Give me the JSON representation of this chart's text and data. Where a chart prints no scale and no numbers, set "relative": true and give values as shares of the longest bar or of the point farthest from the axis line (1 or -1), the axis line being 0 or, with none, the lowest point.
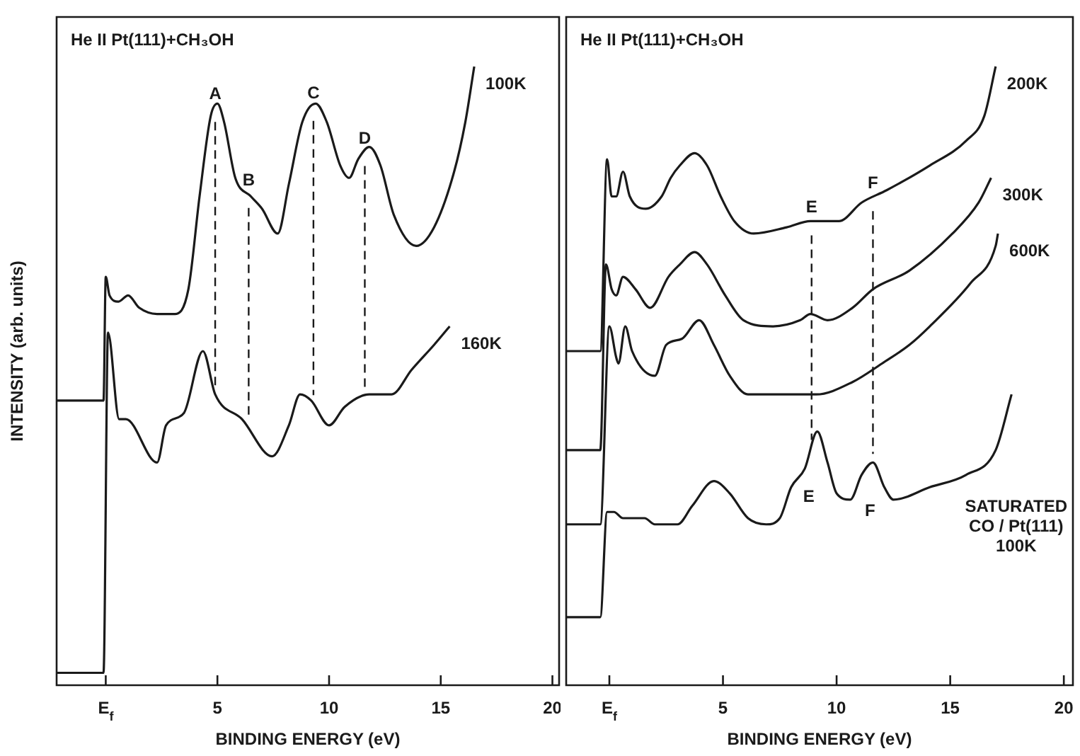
{
  "chart_data": [
    {
      "type": "line",
      "title": "He II Pt(111)+CH₃OH",
      "xlabel": "BINDING ENERGY (eV)",
      "ylabel": "INTENSITY (arb. units)",
      "relative": true,
      "xlim": [
        -2.2,
        20.3
      ],
      "xticks": [
        {
          "value": 0,
          "label": "E$_{f}$"
        },
        5,
        10,
        15,
        20
      ],
      "series": [
        {
          "name": "100K",
          "color": "#1a1a1a",
          "x": [
            -2.2,
            -0.1,
            0,
            0.17,
            0.57,
            1.0,
            1.5,
            2.3,
            3.1,
            3.7,
            4.2,
            4.7,
            5.0,
            5.3,
            5.8,
            6.5,
            7.0,
            7.7,
            8.2,
            8.8,
            9.4,
            9.9,
            10.5,
            10.9,
            11.3,
            11.8,
            12.3,
            12.9,
            13.9,
            14.7,
            15.6,
            16.1,
            16.5
          ],
          "values": [
            0.46,
            0.46,
            0.66,
            0.63,
            0.62,
            0.63,
            0.61,
            0.6,
            0.6,
            0.64,
            0.79,
            0.92,
            0.94,
            0.91,
            0.82,
            0.79,
            0.77,
            0.73,
            0.81,
            0.91,
            0.94,
            0.91,
            0.84,
            0.82,
            0.85,
            0.87,
            0.84,
            0.76,
            0.71,
            0.74,
            0.83,
            0.91,
            1.0
          ]
        },
        {
          "name": "160K",
          "color": "#1a1a1a",
          "x": [
            -2.2,
            -0.1,
            0.1,
            0.6,
            0.9,
            2.3,
            2.7,
            3.5,
            4.35,
            4.9,
            6.1,
            7.45,
            8.2,
            8.7,
            9.2,
            10.0,
            10.7,
            11.8,
            12.8,
            13.7,
            14.7,
            15.4
          ],
          "values": [
            0.02,
            0.02,
            0.57,
            0.43,
            0.43,
            0.36,
            0.42,
            0.44,
            0.54,
            0.47,
            0.43,
            0.37,
            0.42,
            0.47,
            0.46,
            0.42,
            0.45,
            0.47,
            0.47,
            0.51,
            0.55,
            0.58
          ]
        }
      ],
      "ref_lines": [
        {
          "axis": "x",
          "value": 4.9,
          "label": "A",
          "line_style": "dashed"
        },
        {
          "axis": "x",
          "value": 6.4,
          "label": "B",
          "line_style": "dashed"
        },
        {
          "axis": "x",
          "value": 9.3,
          "label": "C",
          "line_style": "dashed"
        },
        {
          "axis": "x",
          "value": 11.6,
          "label": "D",
          "line_style": "dashed"
        }
      ]
    },
    {
      "type": "line",
      "title": "He II Pt(111)+CH₃OH",
      "xlabel": "BINDING ENERGY (eV)",
      "relative": true,
      "xlim": [
        -1.9,
        20.4
      ],
      "xticks": [
        {
          "value": 0,
          "label": "E$_{f}$"
        },
        5,
        10,
        15,
        20
      ],
      "series": [
        {
          "name": "200K",
          "color": "#1a1a1a",
          "x": [
            -1.9,
            -0.4,
            -0.1,
            0.1,
            0.3,
            0.6,
            0.9,
            1.6,
            2.3,
            2.7,
            3.1,
            3.75,
            4.3,
            4.9,
            5.5,
            6.35,
            7.8,
            8.85,
            10.1,
            11.1,
            12.2,
            14.1,
            15.7,
            16.5,
            17.0
          ],
          "values": [
            0.54,
            0.54,
            0.85,
            0.79,
            0.79,
            0.83,
            0.79,
            0.77,
            0.79,
            0.82,
            0.84,
            0.86,
            0.84,
            0.79,
            0.75,
            0.73,
            0.74,
            0.75,
            0.75,
            0.78,
            0.8,
            0.84,
            0.88,
            0.92,
            1.0
          ]
        },
        {
          "name": "300K",
          "color": "#1a1a1a",
          "x": [
            -1.9,
            -0.4,
            -0.15,
            0.1,
            0.3,
            0.6,
            1.15,
            1.8,
            2.6,
            3.1,
            3.75,
            4.3,
            5.1,
            5.9,
            7.2,
            8.4,
            8.85,
            9.6,
            10.7,
            11.6,
            13.2,
            15.1,
            16.25,
            16.8
          ],
          "values": [
            0.38,
            0.38,
            0.68,
            0.64,
            0.63,
            0.66,
            0.64,
            0.61,
            0.66,
            0.68,
            0.7,
            0.68,
            0.63,
            0.59,
            0.58,
            0.59,
            0.6,
            0.59,
            0.61,
            0.64,
            0.67,
            0.73,
            0.78,
            0.82
          ]
        },
        {
          "name": "600K",
          "color": "#1a1a1a",
          "x": [
            -1.9,
            -0.4,
            0.0,
            0.3,
            0.4,
            0.7,
            1.0,
            2.0,
            2.5,
            3.2,
            3.95,
            4.6,
            5.3,
            6.1,
            7.8,
            9.1,
            10.7,
            12.0,
            13.2,
            14.1,
            15.9,
            17.0,
            17.1
          ],
          "values": [
            0.26,
            0.26,
            0.58,
            0.53,
            0.52,
            0.58,
            0.54,
            0.5,
            0.55,
            0.56,
            0.59,
            0.55,
            0.5,
            0.47,
            0.47,
            0.47,
            0.49,
            0.52,
            0.55,
            0.58,
            0.65,
            0.71,
            0.73
          ]
        },
        {
          "name": "SATURATED CO / Pt(111) 100K",
          "color": "#1a1a1a",
          "x": [
            -1.9,
            -0.4,
            -0.1,
            0.2,
            0.6,
            1.15,
            1.55,
            2.0,
            3.0,
            3.65,
            4.6,
            5.3,
            6.1,
            6.9,
            7.5,
            8.0,
            8.6,
            9.15,
            9.6,
            10.0,
            10.6,
            11.1,
            11.6,
            12.1,
            12.5,
            14.1,
            15.7,
            17.0,
            17.7
          ],
          "values": [
            0.11,
            0.11,
            0.28,
            0.28,
            0.27,
            0.27,
            0.27,
            0.26,
            0.26,
            0.29,
            0.33,
            0.31,
            0.27,
            0.26,
            0.27,
            0.32,
            0.35,
            0.41,
            0.36,
            0.31,
            0.3,
            0.34,
            0.36,
            0.32,
            0.3,
            0.32,
            0.34,
            0.38,
            0.47
          ]
        }
      ],
      "ref_lines": [
        {
          "axis": "x",
          "value": 8.9,
          "label": "E",
          "line_style": "dashed"
        },
        {
          "axis": "x",
          "value": 11.6,
          "label": "F",
          "line_style": "dashed"
        }
      ],
      "annotations": [
        "E",
        "F"
      ]
    }
  ]
}
